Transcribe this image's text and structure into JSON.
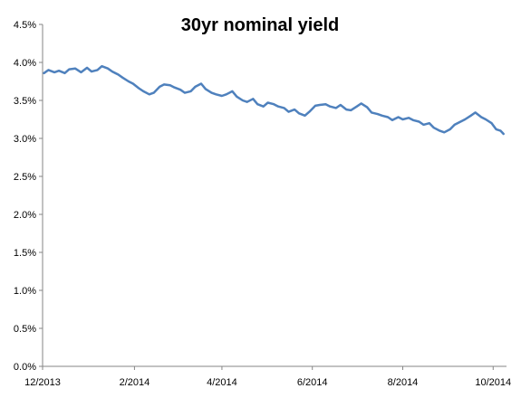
{
  "chart_data": {
    "type": "line",
    "title": "30yr nominal yield",
    "xlabel": "",
    "ylabel": "",
    "x_tick_labels": [
      "12/2013",
      "2/2014",
      "4/2014",
      "6/2014",
      "8/2014",
      "10/2014"
    ],
    "x_tick_dates": [
      "2013-12-01",
      "2014-02-01",
      "2014-04-01",
      "2014-06-01",
      "2014-08-01",
      "2014-10-01"
    ],
    "xlim": [
      "2013-12-01",
      "2014-10-10"
    ],
    "y_tick_labels": [
      "0.0%",
      "0.5%",
      "1.0%",
      "1.5%",
      "2.0%",
      "2.5%",
      "3.0%",
      "3.5%",
      "4.0%",
      "4.5%"
    ],
    "y_tick_values": [
      0.0,
      0.5,
      1.0,
      1.5,
      2.0,
      2.5,
      3.0,
      3.5,
      4.0,
      4.5
    ],
    "ylim": [
      0,
      4.5
    ],
    "grid": false,
    "legend": "none",
    "series": [
      {
        "color": "#4f81bd",
        "points": [
          [
            "2013-12-02",
            3.86
          ],
          [
            "2013-12-05",
            3.9
          ],
          [
            "2013-12-09",
            3.87
          ],
          [
            "2013-12-12",
            3.89
          ],
          [
            "2013-12-16",
            3.86
          ],
          [
            "2013-12-19",
            3.91
          ],
          [
            "2013-12-23",
            3.92
          ],
          [
            "2013-12-27",
            3.87
          ],
          [
            "2013-12-31",
            3.93
          ],
          [
            "2014-01-03",
            3.88
          ],
          [
            "2014-01-07",
            3.9
          ],
          [
            "2014-01-10",
            3.95
          ],
          [
            "2014-01-14",
            3.92
          ],
          [
            "2014-01-17",
            3.88
          ],
          [
            "2014-01-21",
            3.84
          ],
          [
            "2014-01-24",
            3.8
          ],
          [
            "2014-01-28",
            3.75
          ],
          [
            "2014-01-31",
            3.72
          ],
          [
            "2014-02-04",
            3.66
          ],
          [
            "2014-02-07",
            3.62
          ],
          [
            "2014-02-11",
            3.58
          ],
          [
            "2014-02-14",
            3.6
          ],
          [
            "2014-02-18",
            3.68
          ],
          [
            "2014-02-21",
            3.71
          ],
          [
            "2014-02-25",
            3.7
          ],
          [
            "2014-02-28",
            3.67
          ],
          [
            "2014-03-04",
            3.64
          ],
          [
            "2014-03-07",
            3.6
          ],
          [
            "2014-03-11",
            3.62
          ],
          [
            "2014-03-14",
            3.68
          ],
          [
            "2014-03-18",
            3.72
          ],
          [
            "2014-03-21",
            3.65
          ],
          [
            "2014-03-25",
            3.6
          ],
          [
            "2014-03-28",
            3.58
          ],
          [
            "2014-04-01",
            3.56
          ],
          [
            "2014-04-04",
            3.58
          ],
          [
            "2014-04-08",
            3.62
          ],
          [
            "2014-04-11",
            3.55
          ],
          [
            "2014-04-15",
            3.5
          ],
          [
            "2014-04-18",
            3.48
          ],
          [
            "2014-04-22",
            3.52
          ],
          [
            "2014-04-25",
            3.45
          ],
          [
            "2014-04-29",
            3.42
          ],
          [
            "2014-05-02",
            3.47
          ],
          [
            "2014-05-06",
            3.45
          ],
          [
            "2014-05-09",
            3.42
          ],
          [
            "2014-05-13",
            3.4
          ],
          [
            "2014-05-16",
            3.35
          ],
          [
            "2014-05-20",
            3.38
          ],
          [
            "2014-05-23",
            3.33
          ],
          [
            "2014-05-27",
            3.3
          ],
          [
            "2014-05-30",
            3.35
          ],
          [
            "2014-06-03",
            3.43
          ],
          [
            "2014-06-06",
            3.44
          ],
          [
            "2014-06-10",
            3.45
          ],
          [
            "2014-06-13",
            3.42
          ],
          [
            "2014-06-17",
            3.4
          ],
          [
            "2014-06-20",
            3.44
          ],
          [
            "2014-06-24",
            3.38
          ],
          [
            "2014-06-27",
            3.37
          ],
          [
            "2014-07-01",
            3.42
          ],
          [
            "2014-07-04",
            3.46
          ],
          [
            "2014-07-08",
            3.41
          ],
          [
            "2014-07-11",
            3.34
          ],
          [
            "2014-07-15",
            3.32
          ],
          [
            "2014-07-18",
            3.3
          ],
          [
            "2014-07-22",
            3.28
          ],
          [
            "2014-07-25",
            3.24
          ],
          [
            "2014-07-29",
            3.28
          ],
          [
            "2014-08-01",
            3.25
          ],
          [
            "2014-08-05",
            3.27
          ],
          [
            "2014-08-08",
            3.24
          ],
          [
            "2014-08-12",
            3.22
          ],
          [
            "2014-08-15",
            3.18
          ],
          [
            "2014-08-19",
            3.2
          ],
          [
            "2014-08-22",
            3.14
          ],
          [
            "2014-08-26",
            3.1
          ],
          [
            "2014-08-29",
            3.08
          ],
          [
            "2014-09-02",
            3.12
          ],
          [
            "2014-09-05",
            3.18
          ],
          [
            "2014-09-09",
            3.22
          ],
          [
            "2014-09-12",
            3.25
          ],
          [
            "2014-09-16",
            3.3
          ],
          [
            "2014-09-19",
            3.34
          ],
          [
            "2014-09-23",
            3.28
          ],
          [
            "2014-09-26",
            3.25
          ],
          [
            "2014-09-30",
            3.2
          ],
          [
            "2014-10-03",
            3.12
          ],
          [
            "2014-10-06",
            3.1
          ],
          [
            "2014-10-08",
            3.06
          ]
        ]
      }
    ]
  }
}
